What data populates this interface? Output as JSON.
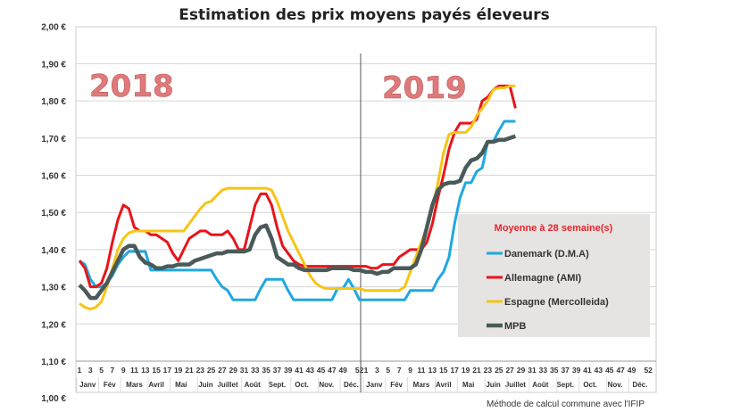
{
  "chart_data": {
    "type": "line",
    "title": "Estimation des prix moyens payés éleveurs",
    "ylim": [
      1.0,
      2.0
    ],
    "yticks": [
      "1,00 €",
      "1,10 €",
      "1,20 €",
      "1,30 €",
      "1,40 €",
      "1,50 €",
      "1,60 €",
      "1,70 €",
      "1,80 €",
      "1,90 €",
      "2,00 €"
    ],
    "grid": true,
    "year_labels": [
      "2018",
      "2019"
    ],
    "week_tick_labels": [
      "1",
      "3",
      "5",
      "7",
      "9",
      "11",
      "13",
      "15",
      "17",
      "19",
      "21",
      "23",
      "25",
      "27",
      "29",
      "31",
      "33",
      "35",
      "37",
      "39",
      "41",
      "43",
      "45",
      "47",
      "49",
      "52"
    ],
    "months": [
      "Janv",
      "Fév",
      "Mars",
      "Avril",
      "Mai",
      "Juin",
      "Juillet",
      "Août",
      "Sept.",
      "Oct.",
      "Nov.",
      "Déc."
    ],
    "legend": {
      "title": "Moyenne à  28 semaine(s)",
      "placement": "right"
    },
    "series": [
      {
        "name": "Danemark (D.M.A)",
        "color": "#1fa8e0",
        "y2018": [
          1.37,
          1.36,
          1.32,
          1.3,
          1.3,
          1.31,
          1.33,
          1.36,
          1.38,
          1.395,
          1.395,
          1.395,
          1.395,
          1.345,
          1.345,
          1.345,
          1.345,
          1.345,
          1.345,
          1.345,
          1.345,
          1.345,
          1.345,
          1.345,
          1.345,
          1.32,
          1.3,
          1.29,
          1.265,
          1.265,
          1.265,
          1.265,
          1.265,
          1.295,
          1.32,
          1.32,
          1.32,
          1.32,
          1.29,
          1.265,
          1.265,
          1.265,
          1.265,
          1.265,
          1.265,
          1.265,
          1.265,
          1.295,
          1.295,
          1.32,
          1.295,
          1.265
        ],
        "y2019": [
          1.265,
          1.265,
          1.265,
          1.265,
          1.265,
          1.265,
          1.265,
          1.265,
          1.29,
          1.29,
          1.29,
          1.29,
          1.29,
          1.32,
          1.34,
          1.38,
          1.47,
          1.54,
          1.58,
          1.58,
          1.61,
          1.62,
          1.69,
          1.69,
          1.72,
          1.745,
          1.745,
          1.745
        ]
      },
      {
        "name": "Allemagne (AMI)",
        "color": "#e8141a",
        "y2018": [
          1.37,
          1.35,
          1.3,
          1.3,
          1.31,
          1.35,
          1.42,
          1.48,
          1.52,
          1.51,
          1.46,
          1.45,
          1.45,
          1.44,
          1.44,
          1.43,
          1.42,
          1.39,
          1.37,
          1.4,
          1.43,
          1.44,
          1.45,
          1.45,
          1.44,
          1.44,
          1.44,
          1.45,
          1.43,
          1.4,
          1.4,
          1.46,
          1.52,
          1.55,
          1.55,
          1.52,
          1.46,
          1.41,
          1.39,
          1.37,
          1.36,
          1.355,
          1.355,
          1.355,
          1.355,
          1.355,
          1.355,
          1.355,
          1.355,
          1.355,
          1.355,
          1.355
        ],
        "y2019": [
          1.355,
          1.35,
          1.35,
          1.36,
          1.36,
          1.36,
          1.38,
          1.39,
          1.4,
          1.4,
          1.4,
          1.42,
          1.47,
          1.54,
          1.6,
          1.67,
          1.715,
          1.74,
          1.74,
          1.74,
          1.75,
          1.8,
          1.81,
          1.83,
          1.84,
          1.84,
          1.84,
          1.78
        ]
      },
      {
        "name": "Espagne (Mercolleida)",
        "color": "#f6c515",
        "y2018": [
          1.255,
          1.245,
          1.24,
          1.245,
          1.26,
          1.3,
          1.35,
          1.4,
          1.43,
          1.445,
          1.45,
          1.45,
          1.45,
          1.45,
          1.45,
          1.45,
          1.45,
          1.45,
          1.45,
          1.45,
          1.47,
          1.49,
          1.51,
          1.525,
          1.53,
          1.545,
          1.56,
          1.565,
          1.565,
          1.565,
          1.565,
          1.565,
          1.565,
          1.565,
          1.565,
          1.56,
          1.53,
          1.49,
          1.45,
          1.42,
          1.39,
          1.36,
          1.33,
          1.31,
          1.3,
          1.295,
          1.295,
          1.295,
          1.295,
          1.295,
          1.295,
          1.295
        ],
        "y2019": [
          1.29,
          1.29,
          1.29,
          1.29,
          1.29,
          1.29,
          1.29,
          1.3,
          1.34,
          1.38,
          1.42,
          1.46,
          1.51,
          1.58,
          1.66,
          1.71,
          1.715,
          1.715,
          1.715,
          1.73,
          1.76,
          1.78,
          1.8,
          1.83,
          1.835,
          1.835,
          1.84,
          1.84
        ]
      },
      {
        "name": "MPB",
        "color": "#4a5a5a",
        "y2018": [
          1.305,
          1.29,
          1.27,
          1.27,
          1.29,
          1.31,
          1.34,
          1.37,
          1.4,
          1.41,
          1.41,
          1.38,
          1.365,
          1.36,
          1.35,
          1.35,
          1.355,
          1.355,
          1.36,
          1.36,
          1.36,
          1.37,
          1.375,
          1.38,
          1.385,
          1.39,
          1.39,
          1.395,
          1.395,
          1.395,
          1.395,
          1.4,
          1.44,
          1.46,
          1.465,
          1.43,
          1.38,
          1.37,
          1.36,
          1.36,
          1.35,
          1.345,
          1.345,
          1.345,
          1.345,
          1.345,
          1.35,
          1.35,
          1.35,
          1.35,
          1.345,
          1.345
        ],
        "y2019": [
          1.34,
          1.34,
          1.335,
          1.34,
          1.34,
          1.35,
          1.35,
          1.35,
          1.35,
          1.36,
          1.4,
          1.46,
          1.52,
          1.56,
          1.575,
          1.58,
          1.58,
          1.585,
          1.62,
          1.64,
          1.645,
          1.66,
          1.69,
          1.69,
          1.695,
          1.695,
          1.7,
          1.705
        ]
      }
    ]
  },
  "footer": "Méthode de calcul commune avec l'IFIP"
}
